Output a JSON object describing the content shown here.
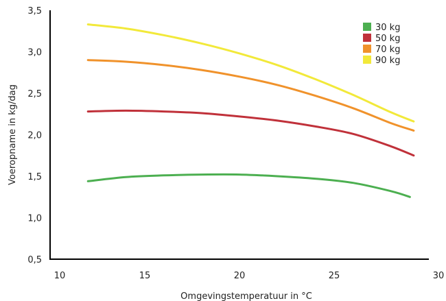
{
  "chart_data": {
    "type": "line",
    "title": "",
    "xlabel": "Omgevingstemperatuur in °C",
    "ylabel": "Voeropname in kg/dag",
    "xlim": [
      10,
      30
    ],
    "ylim": [
      0.5,
      3.5
    ],
    "xticks": [
      "10",
      "15",
      "20",
      "25",
      "30"
    ],
    "yticks": [
      "0,5",
      "1,0",
      "1,5",
      "2,0",
      "2,5",
      "3,0",
      "3,5"
    ],
    "x_tick_values": [
      10,
      15,
      20,
      25,
      30
    ],
    "y_tick_values": [
      0.5,
      1.0,
      1.5,
      2.0,
      2.5,
      3.0,
      3.5
    ],
    "grid": false,
    "legend_position": "top-right",
    "series": [
      {
        "name": "30 kg",
        "color": "#4caf50",
        "x": [
          12,
          14,
          16,
          18,
          20,
          22,
          24,
          26,
          28,
          29
        ],
        "y": [
          1.44,
          1.49,
          1.51,
          1.52,
          1.52,
          1.5,
          1.47,
          1.42,
          1.32,
          1.25
        ]
      },
      {
        "name": "50 kg",
        "color": "#c0313a",
        "x": [
          12,
          14,
          16,
          18,
          20,
          22,
          24,
          26,
          28,
          29.2
        ],
        "y": [
          2.28,
          2.29,
          2.28,
          2.26,
          2.22,
          2.17,
          2.1,
          2.01,
          1.86,
          1.75
        ]
      },
      {
        "name": "70 kg",
        "color": "#f0922b",
        "x": [
          12,
          14,
          16,
          18,
          20,
          22,
          24,
          26,
          28,
          29.2
        ],
        "y": [
          2.9,
          2.88,
          2.84,
          2.78,
          2.7,
          2.6,
          2.47,
          2.32,
          2.14,
          2.05
        ]
      },
      {
        "name": "90 kg",
        "color": "#f2e93a",
        "x": [
          12,
          14,
          16,
          18,
          20,
          22,
          24,
          26,
          28,
          29.2
        ],
        "y": [
          3.33,
          3.28,
          3.2,
          3.1,
          2.98,
          2.84,
          2.67,
          2.48,
          2.27,
          2.16
        ]
      }
    ]
  }
}
